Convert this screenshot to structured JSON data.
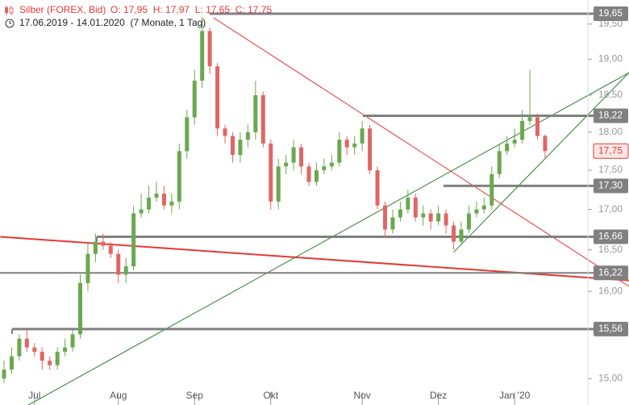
{
  "chart_data": {
    "type": "candlestick",
    "title": "Silber (FOREX, Bid)",
    "ohlc_text": "O: 17,95  H: 17,97  L: 17,65  C: 17,75",
    "subtitle": "17.06.2019 - 14.01.2020  (7 Monate, 1 Tag)",
    "categories": [
      null,
      null,
      null,
      null,
      "Jul",
      null,
      null,
      null,
      null,
      null,
      null,
      null,
      null,
      null,
      null,
      "Aug",
      null,
      null,
      null,
      null,
      null,
      null,
      null,
      null,
      null,
      "Sep",
      null,
      null,
      null,
      null,
      null,
      null,
      null,
      null,
      null,
      "Okt",
      null,
      null,
      null,
      null,
      null,
      null,
      null,
      null,
      null,
      null,
      null,
      "Nov",
      null,
      null,
      null,
      null,
      null,
      null,
      null,
      null,
      null,
      "Dez",
      null,
      null,
      null,
      null,
      null,
      null,
      null,
      null,
      null,
      "Jan '20",
      null,
      null,
      null,
      null
    ],
    "open": [
      15.0,
      15.1,
      15.25,
      15.45,
      15.35,
      15.3,
      15.2,
      15.15,
      15.3,
      15.35,
      15.5,
      16.1,
      16.45,
      16.6,
      16.55,
      16.45,
      16.2,
      16.3,
      16.95,
      17.0,
      17.15,
      17.2,
      17.05,
      17.1,
      17.75,
      18.2,
      18.7,
      19.4,
      18.9,
      18.05,
      17.95,
      17.7,
      17.9,
      18.0,
      18.5,
      17.85,
      17.1,
      17.55,
      17.6,
      17.8,
      17.55,
      17.35,
      17.5,
      17.55,
      17.6,
      17.9,
      17.8,
      17.85,
      18.05,
      17.5,
      17.05,
      16.75,
      16.9,
      17.0,
      17.15,
      16.9,
      16.95,
      16.85,
      16.95,
      16.8,
      16.6,
      16.75,
      16.95,
      17.0,
      17.05,
      17.45,
      17.75,
      17.85,
      17.9,
      18.15,
      18.2,
      17.95
    ],
    "high": [
      15.2,
      15.35,
      15.5,
      15.55,
      15.4,
      15.35,
      15.25,
      15.35,
      15.45,
      15.55,
      16.2,
      16.6,
      16.7,
      16.7,
      16.6,
      16.5,
      16.4,
      17.05,
      17.2,
      17.3,
      17.35,
      17.3,
      17.2,
      17.85,
      18.3,
      18.85,
      19.6,
      19.45,
      18.95,
      18.1,
      18.0,
      18.0,
      18.1,
      18.7,
      18.55,
      17.9,
      17.65,
      17.7,
      17.9,
      17.85,
      17.6,
      17.6,
      17.65,
      17.7,
      18.0,
      17.95,
      17.95,
      18.15,
      18.1,
      17.55,
      17.1,
      17.0,
      17.1,
      17.25,
      17.2,
      17.05,
      17.0,
      17.05,
      17.0,
      16.85,
      16.85,
      17.05,
      17.1,
      17.15,
      17.55,
      17.85,
      17.95,
      18.05,
      18.3,
      18.85,
      18.25,
      17.97
    ],
    "low": [
      14.95,
      15.05,
      15.2,
      15.3,
      15.25,
      15.1,
      15.1,
      15.1,
      15.25,
      15.3,
      15.45,
      16.0,
      16.35,
      16.5,
      16.4,
      16.1,
      16.1,
      16.25,
      16.9,
      16.95,
      17.1,
      17.0,
      16.95,
      17.0,
      17.65,
      18.1,
      18.6,
      18.8,
      17.95,
      17.85,
      17.6,
      17.6,
      17.8,
      17.9,
      17.8,
      17.0,
      17.0,
      17.45,
      17.5,
      17.45,
      17.3,
      17.3,
      17.45,
      17.5,
      17.55,
      17.7,
      17.7,
      17.75,
      17.45,
      17.0,
      16.65,
      16.7,
      16.85,
      16.95,
      16.85,
      16.8,
      16.75,
      16.8,
      16.7,
      16.5,
      16.55,
      16.7,
      16.9,
      16.95,
      17.0,
      17.4,
      17.7,
      17.8,
      17.85,
      18.1,
      17.9,
      17.65
    ],
    "close": [
      15.1,
      15.25,
      15.45,
      15.35,
      15.3,
      15.2,
      15.15,
      15.3,
      15.35,
      15.5,
      16.1,
      16.45,
      16.6,
      16.55,
      16.45,
      16.2,
      16.3,
      16.95,
      17.0,
      17.15,
      17.2,
      17.05,
      17.1,
      17.75,
      18.2,
      18.7,
      19.4,
      18.9,
      18.05,
      17.95,
      17.7,
      17.9,
      18.0,
      18.5,
      17.85,
      17.1,
      17.55,
      17.6,
      17.8,
      17.55,
      17.35,
      17.5,
      17.55,
      17.6,
      17.9,
      17.8,
      17.85,
      18.05,
      17.5,
      17.05,
      16.75,
      16.9,
      17.0,
      17.15,
      16.9,
      16.95,
      16.85,
      16.95,
      16.8,
      16.6,
      16.75,
      16.95,
      17.0,
      17.05,
      17.45,
      17.75,
      17.85,
      17.9,
      18.15,
      18.2,
      17.95,
      17.75
    ],
    "up_color": "#6aa84f",
    "down_color": "#e06666",
    "log_scale": true,
    "ylim": [
      14.71,
      19.85
    ],
    "yticks": [
      {
        "value": 15.0,
        "label": "15,00"
      },
      {
        "value": 16.0,
        "label": "16,00"
      },
      {
        "value": 16.5,
        "label": "16,50"
      },
      {
        "value": 17.0,
        "label": "17,00"
      },
      {
        "value": 17.5,
        "label": "17,50"
      },
      {
        "value": 18.0,
        "label": "18,00"
      },
      {
        "value": 18.5,
        "label": "18,50"
      },
      {
        "value": 19.0,
        "label": "19,00"
      },
      {
        "value": 19.5,
        "label": "19,50"
      }
    ],
    "levels": [
      {
        "value": 19.65,
        "label": "19,65"
      },
      {
        "value": 18.22,
        "label": "18,22"
      },
      {
        "value": 17.3,
        "label": "17,30"
      },
      {
        "value": 16.66,
        "label": "16,66"
      },
      {
        "value": 16.22,
        "label": "16,22"
      },
      {
        "value": 15.56,
        "label": "15,56"
      }
    ],
    "level_color": "#808080",
    "last_price": {
      "value": 17.75,
      "label": "17,75"
    },
    "trendlines": [
      {
        "x": [
          27.5,
          82
        ],
        "y": [
          19.59,
          16.06
        ],
        "color": "#e53935",
        "width": 1
      },
      {
        "x": [
          -0.5,
          82
        ],
        "y": [
          16.66,
          16.13
        ],
        "color": "#e53935",
        "width": 2
      },
      {
        "x": [
          3.2,
          82
        ],
        "y": [
          14.71,
          18.81
        ],
        "color": "#2e7d32",
        "width": 1
      },
      {
        "x": [
          59,
          82
        ],
        "y": [
          16.47,
          18.81
        ],
        "color": "#2e7d32",
        "width": 1
      }
    ]
  }
}
